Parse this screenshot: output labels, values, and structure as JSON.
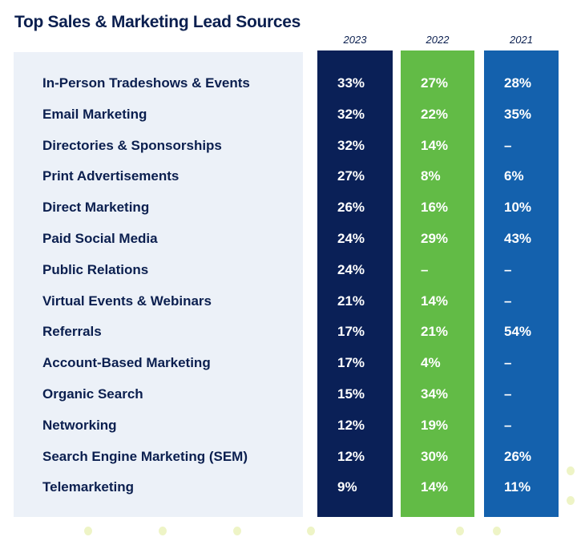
{
  "title": "Top Sales & Marketing Lead Sources",
  "years": [
    {
      "label": "2023",
      "color": "#0a2057"
    },
    {
      "label": "2022",
      "color": "#62bb46"
    },
    {
      "label": "2021",
      "color": "#1461ad"
    }
  ],
  "rows": [
    {
      "label": "In-Person Tradeshows & Events",
      "values": [
        "33%",
        "27%",
        "28%"
      ]
    },
    {
      "label": "Email Marketing",
      "values": [
        "32%",
        "22%",
        "35%"
      ]
    },
    {
      "label": "Directories & Sponsorships",
      "values": [
        "32%",
        "14%",
        "–"
      ]
    },
    {
      "label": "Print Advertisements",
      "values": [
        "27%",
        "8%",
        "6%"
      ]
    },
    {
      "label": "Direct Marketing",
      "values": [
        "26%",
        "16%",
        "10%"
      ]
    },
    {
      "label": "Paid Social Media",
      "values": [
        "24%",
        "29%",
        "43%"
      ]
    },
    {
      "label": "Public Relations",
      "values": [
        "24%",
        "–",
        "–"
      ]
    },
    {
      "label": "Virtual Events & Webinars",
      "values": [
        "21%",
        "14%",
        "–"
      ]
    },
    {
      "label": "Referrals",
      "values": [
        "17%",
        "21%",
        "54%"
      ]
    },
    {
      "label": "Account-Based Marketing",
      "values": [
        "17%",
        "4%",
        "–"
      ]
    },
    {
      "label": "Organic Search",
      "values": [
        "15%",
        "34%",
        "–"
      ]
    },
    {
      "label": "Networking",
      "values": [
        "12%",
        "19%",
        "–"
      ]
    },
    {
      "label": "Search Engine Marketing (SEM)",
      "values": [
        "12%",
        "30%",
        "26%"
      ]
    },
    {
      "label": "Telemarketing",
      "values": [
        "9%",
        "14%",
        "11%"
      ]
    }
  ]
}
